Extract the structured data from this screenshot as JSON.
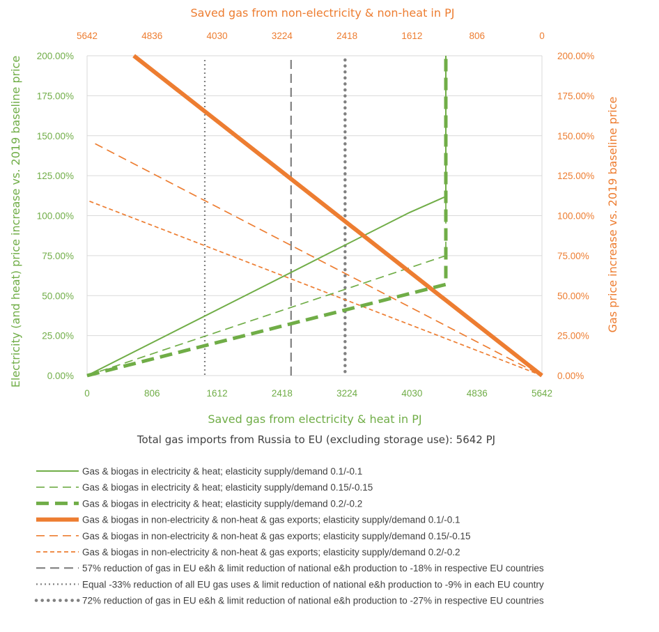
{
  "chart_data": {
    "type": "line",
    "colors": {
      "green": "#70AD47",
      "orange": "#ED7D31",
      "gray": "#808080",
      "axis_text_gray": "#595959"
    },
    "bottom_axis": {
      "title": "Saved gas from electricity & heat in PJ",
      "ticks": [
        "0",
        "806",
        "1612",
        "2418",
        "3224",
        "4030",
        "4836",
        "5642"
      ],
      "range": [
        0,
        5642
      ]
    },
    "top_axis": {
      "title": "Saved gas from non-electricity & non-heat in PJ",
      "ticks": [
        "5642",
        "4836",
        "4030",
        "3224",
        "2418",
        "1612",
        "806",
        "0"
      ],
      "range": [
        5642,
        0
      ]
    },
    "left_axis": {
      "title": "Electricity (and heat) price increase vs. 2019 baseline price",
      "ticks": [
        "0.00%",
        "25.00%",
        "50.00%",
        "75.00%",
        "100.00%",
        "125.00%",
        "150.00%",
        "175.00%",
        "200.00%"
      ],
      "range": [
        0,
        200
      ]
    },
    "right_axis": {
      "title": "Gas price increase vs. 2019 baseline price",
      "ticks": [
        "0.00%",
        "25.00%",
        "50.00%",
        "75.00%",
        "100.00%",
        "125.00%",
        "150.00%",
        "175.00%",
        "200.00%"
      ],
      "range": [
        0,
        200
      ]
    },
    "subtitle": "Total gas imports from Russia to EU (excluding storage use): 5642 PJ",
    "ylim": [
      0,
      200
    ],
    "xlim": [
      0,
      5642
    ],
    "series": [
      {
        "name": "Gas & biogas in electricity & heat; elasticity supply/demand 0.1/-0.1",
        "color": "#70AD47",
        "style": "solid",
        "weight": "thin",
        "x": [
          0,
          1000,
          2000,
          3000,
          4000,
          4450,
          4450
        ],
        "y": [
          0,
          25.5,
          51,
          76.5,
          102,
          112,
          200
        ]
      },
      {
        "name": "Gas & biogas in electricity & heat; elasticity supply/demand 0.15/-0.15",
        "color": "#70AD47",
        "style": "dashed",
        "weight": "thin",
        "x": [
          0,
          4450,
          4450
        ],
        "y": [
          0,
          75,
          200
        ]
      },
      {
        "name": "Gas & biogas in electricity & heat; elasticity supply/demand 0.2/-0.2",
        "color": "#70AD47",
        "style": "dashed",
        "weight": "thick",
        "x": [
          0,
          4450,
          4450
        ],
        "y": [
          0,
          57,
          200
        ]
      },
      {
        "name": "Gas & biogas in non-electricity & non-heat & gas exports; elasticity supply/demand 0.1/-0.1",
        "color": "#ED7D31",
        "style": "solid",
        "weight": "thick",
        "x": [
          580,
          5642
        ],
        "y": [
          200,
          0
        ]
      },
      {
        "name": "Gas & biogas in non-electricity & non-heat & gas exports; elasticity supply/demand 0.15/-0.15",
        "color": "#ED7D31",
        "style": "dashed",
        "weight": "thin",
        "x": [
          100,
          5642
        ],
        "y": [
          145,
          0
        ]
      },
      {
        "name": "Gas & biogas in non-electricity & non-heat & gas exports; elasticity supply/demand 0.2/-0.2",
        "color": "#ED7D31",
        "style": "shortdash",
        "weight": "thin",
        "x": [
          30,
          5642
        ],
        "y": [
          109,
          0
        ]
      }
    ],
    "reference_lines": [
      {
        "name": "57% reduction of gas in EU e&h & limit reduction of national e&h production to -18% in respective EU countries",
        "color": "#808080",
        "style": "dashed",
        "x": 2530
      },
      {
        "name": "Equal -33% reduction of all EU gas uses & limit reduction of national e&h production to -9% in each EU country",
        "color": "#808080",
        "style": "dotted",
        "x": 1460
      },
      {
        "name": "72% reduction of gas in EU e&h & limit reduction of national e&h production to -27% in respective EU countries",
        "color": "#808080",
        "style": "roundDot",
        "x": 3200
      }
    ],
    "legend_position": "bottom"
  }
}
